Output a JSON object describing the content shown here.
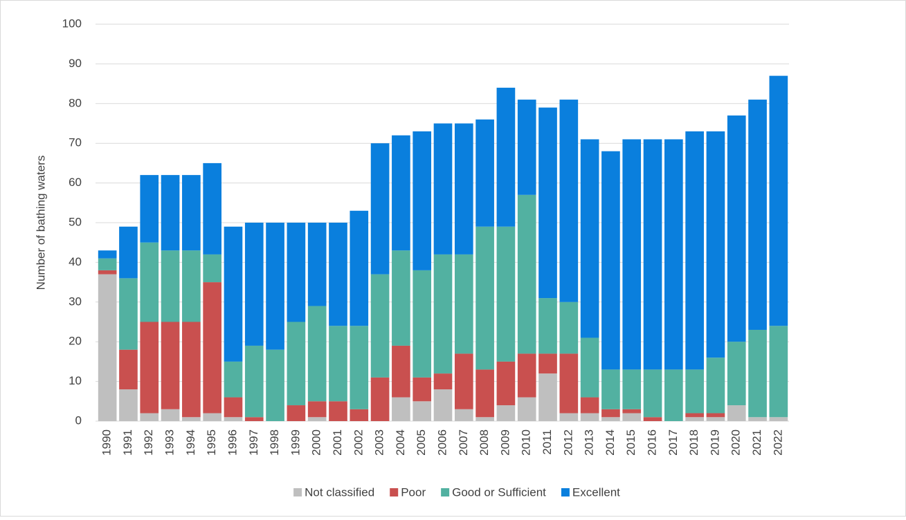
{
  "chart_data": {
    "type": "stacked_bar",
    "y_label": "Number of bathing waters",
    "categories": [
      "1990",
      "1991",
      "1992",
      "1993",
      "1994",
      "1995",
      "1996",
      "1997",
      "1998",
      "1999",
      "2000",
      "2001",
      "2002",
      "2003",
      "2004",
      "2005",
      "2006",
      "2007",
      "2008",
      "2009",
      "2010",
      "2011",
      "2012",
      "2013",
      "2014",
      "2015",
      "2016",
      "2017",
      "2018",
      "2019",
      "2020",
      "2021",
      "2022"
    ],
    "series": [
      {
        "name": "Not classified",
        "color": "#bfbfbf",
        "values": [
          37,
          8,
          2,
          3,
          1,
          2,
          1,
          0,
          0,
          0,
          1,
          0,
          0,
          0,
          6,
          5,
          8,
          3,
          1,
          4,
          6,
          12,
          2,
          2,
          1,
          2,
          0,
          0,
          1,
          1,
          4,
          1,
          1
        ]
      },
      {
        "name": "Poor",
        "color": "#c9504f",
        "values": [
          1,
          10,
          23,
          22,
          24,
          33,
          5,
          1,
          0,
          4,
          4,
          5,
          3,
          11,
          13,
          6,
          4,
          14,
          12,
          11,
          11,
          5,
          15,
          4,
          2,
          1,
          1,
          0,
          1,
          1,
          0,
          0,
          0
        ]
      },
      {
        "name": "Good or Sufficient",
        "color": "#52b1a1",
        "values": [
          3,
          18,
          20,
          18,
          18,
          7,
          9,
          18,
          18,
          21,
          24,
          19,
          21,
          26,
          24,
          27,
          30,
          25,
          36,
          34,
          40,
          14,
          13,
          15,
          10,
          10,
          12,
          13,
          11,
          14,
          16,
          22,
          23
        ]
      },
      {
        "name": "Excellent",
        "color": "#0a7fdd",
        "values": [
          2,
          13,
          17,
          19,
          19,
          23,
          34,
          31,
          32,
          25,
          21,
          26,
          29,
          33,
          29,
          35,
          33,
          33,
          27,
          35,
          24,
          48,
          51,
          50,
          55,
          58,
          58,
          58,
          60,
          57,
          57,
          58,
          63
        ]
      }
    ],
    "ylim": [
      0,
      100
    ],
    "yticks": [
      0,
      10,
      20,
      30,
      40,
      50,
      60,
      70,
      80,
      90,
      100
    ],
    "grid": true,
    "legend": "bottom"
  }
}
